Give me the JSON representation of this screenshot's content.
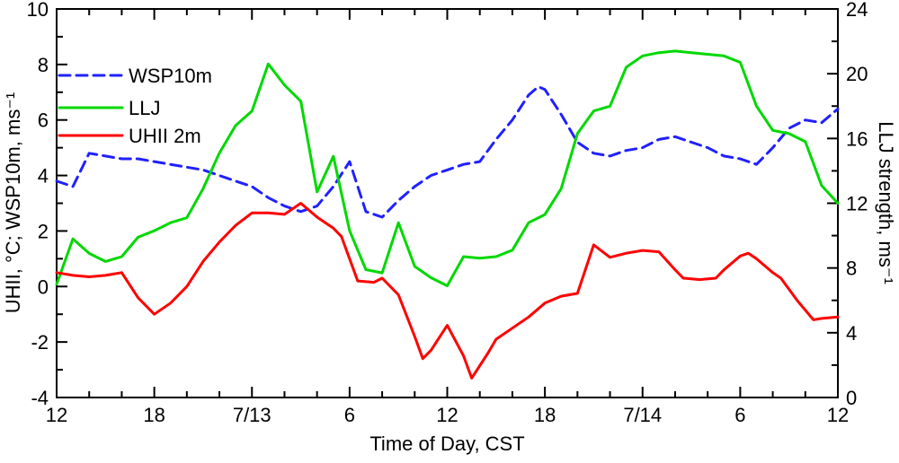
{
  "page": {
    "background": "#ffffff",
    "frame_color": "#000000"
  },
  "chart_data": {
    "type": "line",
    "title": "",
    "xlabel": "Time of Day, CST",
    "ylabel_left": "UHII, °C; WSP10m, ms⁻¹",
    "ylabel_right": "LLJ strength, ms⁻¹",
    "grid": false,
    "legend": {
      "position": "top-left"
    },
    "x_axis": {
      "unit": "hours from 12:00 CST 7/12",
      "range": [
        0,
        48
      ],
      "major_tick_step": 6,
      "minor_tick_step": 2,
      "tick_labels": [
        "12",
        "18",
        "7/13",
        "6",
        "12",
        "18",
        "7/14",
        "6",
        "12"
      ]
    },
    "left_axis": {
      "range": [
        -4,
        10
      ],
      "major_tick_step": 2,
      "minor_tick_step": 1,
      "tick_labels": [
        "-4",
        "-2",
        "0",
        "2",
        "4",
        "6",
        "8",
        "10"
      ]
    },
    "right_axis": {
      "range": [
        0,
        24
      ],
      "major_tick_step": 4,
      "minor_tick_step": 2,
      "tick_labels": [
        "0",
        "4",
        "8",
        "12",
        "16",
        "20",
        "24"
      ]
    },
    "series": [
      {
        "name": "WSP10m",
        "axis": "left",
        "color": "#2020ff",
        "style": "dashed",
        "points": [
          [
            0,
            3.8
          ],
          [
            1,
            3.6
          ],
          [
            2,
            4.8
          ],
          [
            3,
            4.7
          ],
          [
            4,
            4.6
          ],
          [
            5,
            4.6
          ],
          [
            6,
            4.5
          ],
          [
            7,
            4.4
          ],
          [
            8,
            4.3
          ],
          [
            9,
            4.2
          ],
          [
            10,
            4.0
          ],
          [
            11,
            3.8
          ],
          [
            12,
            3.6
          ],
          [
            13,
            3.2
          ],
          [
            14,
            2.9
          ],
          [
            15,
            2.7
          ],
          [
            16,
            2.9
          ],
          [
            17,
            3.6
          ],
          [
            18,
            4.5
          ],
          [
            19,
            2.7
          ],
          [
            20,
            2.5
          ],
          [
            21,
            3.1
          ],
          [
            22,
            3.6
          ],
          [
            23,
            4.0
          ],
          [
            24,
            4.2
          ],
          [
            25,
            4.4
          ],
          [
            26,
            4.5
          ],
          [
            27,
            5.3
          ],
          [
            28,
            6.0
          ],
          [
            29,
            6.9
          ],
          [
            29.6,
            7.2
          ],
          [
            30,
            7.1
          ],
          [
            31,
            6.2
          ],
          [
            32,
            5.2
          ],
          [
            33,
            4.8
          ],
          [
            34,
            4.7
          ],
          [
            35,
            4.9
          ],
          [
            36,
            5.0
          ],
          [
            37,
            5.3
          ],
          [
            38,
            5.4
          ],
          [
            39,
            5.2
          ],
          [
            40,
            5.0
          ],
          [
            41,
            4.7
          ],
          [
            42,
            4.6
          ],
          [
            43,
            4.4
          ],
          [
            44,
            5.0
          ],
          [
            45,
            5.7
          ],
          [
            46,
            6.0
          ],
          [
            47,
            5.9
          ],
          [
            48,
            6.4
          ]
        ]
      },
      {
        "name": "LLJ",
        "axis": "right",
        "color": "#00d800",
        "style": "solid",
        "points": [
          [
            0,
            7.0
          ],
          [
            1,
            9.8
          ],
          [
            2,
            8.9
          ],
          [
            3,
            8.4
          ],
          [
            4,
            8.7
          ],
          [
            5,
            9.9
          ],
          [
            6,
            10.3
          ],
          [
            7,
            10.8
          ],
          [
            8,
            11.1
          ],
          [
            9,
            12.9
          ],
          [
            10,
            15.1
          ],
          [
            11,
            16.8
          ],
          [
            12,
            17.7
          ],
          [
            13,
            20.6
          ],
          [
            14,
            19.3
          ],
          [
            15,
            18.3
          ],
          [
            16,
            12.7
          ],
          [
            17,
            14.9
          ],
          [
            18,
            10.3
          ],
          [
            19,
            7.9
          ],
          [
            20,
            7.7
          ],
          [
            21,
            10.8
          ],
          [
            22,
            8.1
          ],
          [
            23,
            7.4
          ],
          [
            24,
            6.9
          ],
          [
            25,
            8.7
          ],
          [
            26,
            8.6
          ],
          [
            27,
            8.7
          ],
          [
            28,
            9.1
          ],
          [
            29,
            10.8
          ],
          [
            30,
            11.3
          ],
          [
            31,
            12.9
          ],
          [
            32,
            16.3
          ],
          [
            33,
            17.7
          ],
          [
            34,
            18.0
          ],
          [
            35,
            20.4
          ],
          [
            36,
            21.1
          ],
          [
            37,
            21.3
          ],
          [
            38,
            21.4
          ],
          [
            39,
            21.3
          ],
          [
            40,
            21.2
          ],
          [
            41,
            21.1
          ],
          [
            42,
            20.7
          ],
          [
            43,
            18.0
          ],
          [
            44,
            16.5
          ],
          [
            45,
            16.3
          ],
          [
            46,
            15.8
          ],
          [
            47,
            13.1
          ],
          [
            48,
            12.0
          ]
        ]
      },
      {
        "name": "UHII 2m",
        "axis": "left",
        "color": "#ff0000",
        "style": "solid",
        "points": [
          [
            0,
            0.5
          ],
          [
            1,
            0.4
          ],
          [
            2,
            0.35
          ],
          [
            3,
            0.4
          ],
          [
            4,
            0.5
          ],
          [
            5,
            -0.4
          ],
          [
            6,
            -1.0
          ],
          [
            7,
            -0.6
          ],
          [
            8,
            0.0
          ],
          [
            9,
            0.9
          ],
          [
            10,
            1.6
          ],
          [
            11,
            2.2
          ],
          [
            12,
            2.65
          ],
          [
            13,
            2.65
          ],
          [
            14,
            2.6
          ],
          [
            15,
            3.0
          ],
          [
            16,
            2.5
          ],
          [
            17,
            2.1
          ],
          [
            17.5,
            1.8
          ],
          [
            18.5,
            0.2
          ],
          [
            19.5,
            0.15
          ],
          [
            20,
            0.3
          ],
          [
            21,
            -0.3
          ],
          [
            22,
            -1.8
          ],
          [
            22.5,
            -2.6
          ],
          [
            23,
            -2.3
          ],
          [
            24,
            -1.4
          ],
          [
            25,
            -2.5
          ],
          [
            25.5,
            -3.3
          ],
          [
            26.5,
            -2.4
          ],
          [
            27,
            -1.9
          ],
          [
            28,
            -1.5
          ],
          [
            29,
            -1.1
          ],
          [
            30,
            -0.6
          ],
          [
            31,
            -0.35
          ],
          [
            32,
            -0.25
          ],
          [
            33,
            1.5
          ],
          [
            34,
            1.05
          ],
          [
            35,
            1.2
          ],
          [
            36,
            1.3
          ],
          [
            37,
            1.25
          ],
          [
            38,
            0.6
          ],
          [
            38.5,
            0.3
          ],
          [
            39.5,
            0.25
          ],
          [
            40.5,
            0.3
          ],
          [
            41,
            0.6
          ],
          [
            42,
            1.1
          ],
          [
            42.5,
            1.2
          ],
          [
            43,
            1.0
          ],
          [
            44,
            0.5
          ],
          [
            44.5,
            0.3
          ],
          [
            45.5,
            -0.5
          ],
          [
            46.5,
            -1.2
          ],
          [
            47,
            -1.15
          ],
          [
            48,
            -1.1
          ]
        ]
      }
    ]
  }
}
